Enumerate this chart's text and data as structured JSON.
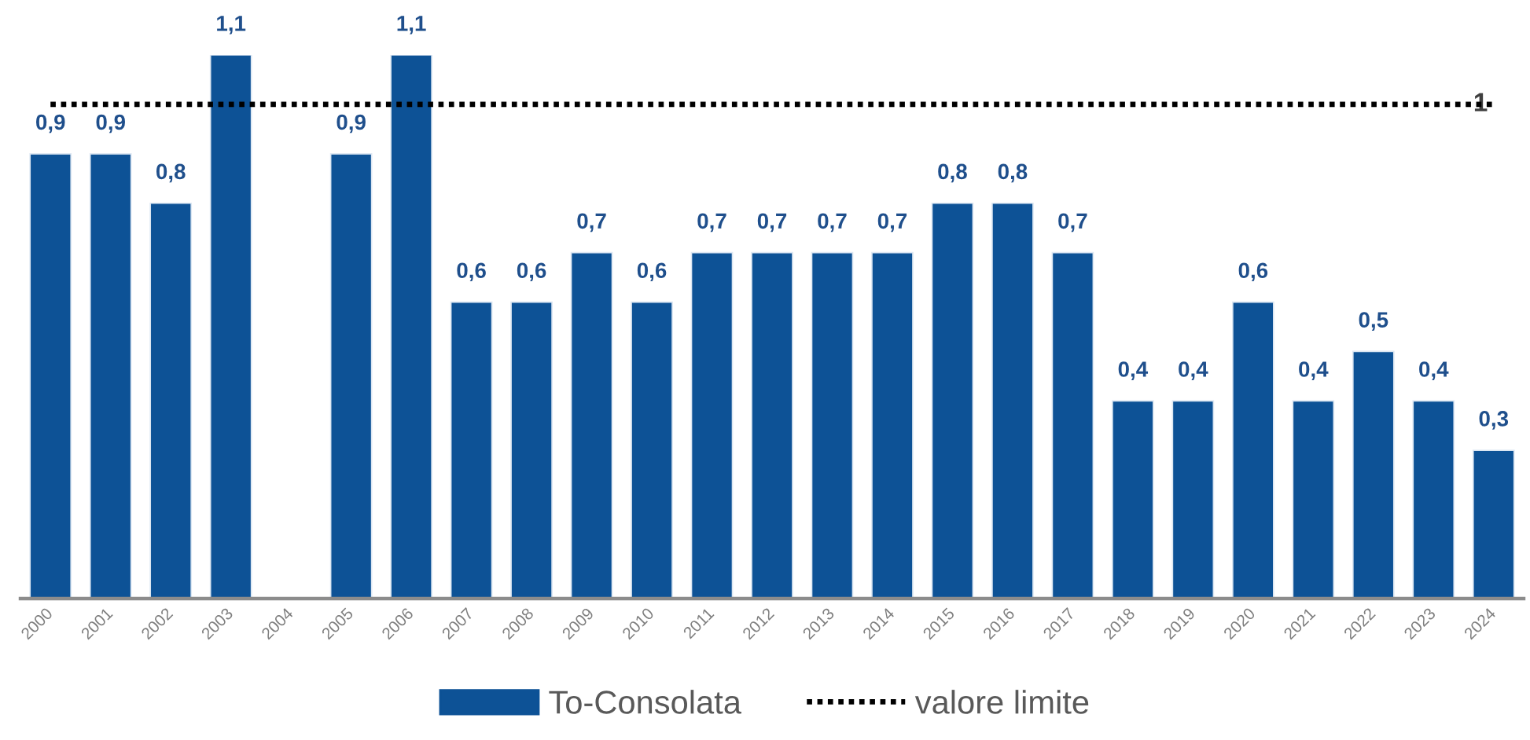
{
  "chart_data": {
    "type": "bar",
    "categories": [
      "2000",
      "2001",
      "2002",
      "2003",
      "2004",
      "2005",
      "2006",
      "2007",
      "2008",
      "2009",
      "2010",
      "2011",
      "2012",
      "2013",
      "2014",
      "2015",
      "2016",
      "2017",
      "2018",
      "2019",
      "2020",
      "2021",
      "2022",
      "2023",
      "2024"
    ],
    "series": [
      {
        "name": "To-Consolata",
        "color": "#0d5296",
        "values": [
          0.9,
          0.9,
          0.8,
          1.1,
          null,
          0.9,
          1.1,
          0.6,
          0.6,
          0.7,
          0.6,
          0.7,
          0.7,
          0.7,
          0.7,
          0.8,
          0.8,
          0.7,
          0.4,
          0.4,
          0.6,
          0.4,
          0.5,
          0.4,
          0.3
        ],
        "value_labels": [
          "0,9",
          "0,9",
          "0,8",
          "1,1",
          null,
          "0,9",
          "1,1",
          "0,6",
          "0,6",
          "0,7",
          "0,6",
          "0,7",
          "0,7",
          "0,7",
          "0,7",
          "0,8",
          "0,8",
          "0,7",
          "0,4",
          "0,4",
          "0,6",
          "0,4",
          "0,5",
          "0,4",
          "0,3"
        ]
      },
      {
        "name": "valore limite",
        "type": "line",
        "color": "#000000",
        "line_style": "dotted",
        "marker": "none",
        "values": [
          1,
          1,
          1,
          1,
          1,
          1,
          1,
          1,
          1,
          1,
          1,
          1,
          1,
          1,
          1,
          1,
          1,
          1,
          1,
          1,
          1,
          1,
          1,
          1,
          1
        ],
        "value_labels": [
          null,
          null,
          null,
          null,
          null,
          null,
          null,
          null,
          null,
          null,
          null,
          null,
          null,
          null,
          null,
          null,
          null,
          null,
          null,
          null,
          null,
          null,
          null,
          null,
          "1"
        ]
      }
    ],
    "legend": "bottom",
    "grid": false,
    "tick_labels": "x"
  }
}
